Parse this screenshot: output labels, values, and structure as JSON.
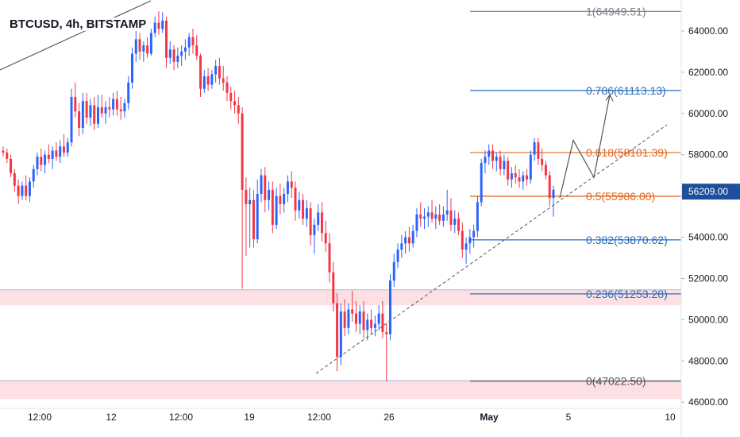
{
  "chart_data": {
    "type": "candlestick",
    "title": "BTCUSD, 4h, BITSTAMP",
    "ylim": [
      45700,
      65500
    ],
    "y_ticks": [
      {
        "value": 46000,
        "label": "46000.00"
      },
      {
        "value": 48000,
        "label": "48000.00"
      },
      {
        "value": 50000,
        "label": "50000.00"
      },
      {
        "value": 52000,
        "label": "52000.00"
      },
      {
        "value": 54000,
        "label": "54000.00"
      },
      {
        "value": 56000,
        "label": "56000.00"
      },
      {
        "value": 58000,
        "label": "58000.00"
      },
      {
        "value": 60000,
        "label": "60000.00"
      },
      {
        "value": 62000,
        "label": "62000.00"
      },
      {
        "value": 64000,
        "label": "64000.00"
      }
    ],
    "x_ticks": [
      "12:00",
      "12",
      "12:00",
      "19",
      "12:00",
      "26",
      "May",
      "5",
      "10"
    ],
    "current_price": {
      "value": 56209,
      "label": "56209.00",
      "color": "#1f4e9c"
    },
    "colors": {
      "up": "#2962ff",
      "down": "#f23645",
      "fib_blue": "#2a6fba",
      "fib_orange": "#e0651b",
      "fib_gray": "#787b86",
      "zone": "#fde0e3"
    },
    "fib_levels": [
      {
        "ratio": "1",
        "value": 64949.51,
        "label": "1(64949.51)",
        "color": "#787b86"
      },
      {
        "ratio": "0.786",
        "value": 61113.13,
        "label": "0.786(61113.13)",
        "color": "#2a6fba"
      },
      {
        "ratio": "0.618",
        "value": 58101.39,
        "label": "0.618(58101.39)",
        "color": "#e0651b"
      },
      {
        "ratio": "0.5",
        "value": 55986.0,
        "label": "0.5(55986.00)",
        "color": "#e0651b"
      },
      {
        "ratio": "0.382",
        "value": 53870.62,
        "label": "0.382(53870.62)",
        "color": "#2a6fba"
      },
      {
        "ratio": "0.236",
        "value": 51253.28,
        "label": "0.236(51253.28)",
        "color": "#2a6fba"
      },
      {
        "ratio": "0",
        "value": 47022.5,
        "label": "0(47022.50)",
        "color": "#555555"
      }
    ],
    "zones": [
      {
        "from": 50700,
        "to": 51450
      },
      {
        "from": 46150,
        "to": 47050
      }
    ],
    "candles": [
      {
        "o": 58200,
        "h": 58400,
        "l": 57900,
        "c": 58100
      },
      {
        "o": 58100,
        "h": 58300,
        "l": 57600,
        "c": 57800
      },
      {
        "o": 57800,
        "h": 58000,
        "l": 56900,
        "c": 57100
      },
      {
        "o": 57100,
        "h": 57300,
        "l": 56200,
        "c": 56500
      },
      {
        "o": 56500,
        "h": 56800,
        "l": 55600,
        "c": 56000
      },
      {
        "o": 56000,
        "h": 56700,
        "l": 55800,
        "c": 56500
      },
      {
        "o": 56500,
        "h": 57000,
        "l": 55800,
        "c": 56000
      },
      {
        "o": 56000,
        "h": 56900,
        "l": 55700,
        "c": 56700
      },
      {
        "o": 56700,
        "h": 57500,
        "l": 56400,
        "c": 57300
      },
      {
        "o": 57300,
        "h": 58100,
        "l": 57000,
        "c": 57900
      },
      {
        "o": 57900,
        "h": 58300,
        "l": 57200,
        "c": 57500
      },
      {
        "o": 57500,
        "h": 58200,
        "l": 57100,
        "c": 58000
      },
      {
        "o": 58000,
        "h": 58500,
        "l": 57600,
        "c": 57800
      },
      {
        "o": 57800,
        "h": 58400,
        "l": 57300,
        "c": 58200
      },
      {
        "o": 58200,
        "h": 58600,
        "l": 57700,
        "c": 57900
      },
      {
        "o": 57900,
        "h": 58700,
        "l": 57600,
        "c": 58400
      },
      {
        "o": 58400,
        "h": 59000,
        "l": 57900,
        "c": 58100
      },
      {
        "o": 58100,
        "h": 58800,
        "l": 57900,
        "c": 58600
      },
      {
        "o": 58600,
        "h": 61200,
        "l": 58400,
        "c": 60800
      },
      {
        "o": 60800,
        "h": 61500,
        "l": 59800,
        "c": 60100
      },
      {
        "o": 60100,
        "h": 60500,
        "l": 58900,
        "c": 59300
      },
      {
        "o": 59300,
        "h": 61000,
        "l": 59000,
        "c": 60600
      },
      {
        "o": 60600,
        "h": 61000,
        "l": 59500,
        "c": 59800
      },
      {
        "o": 59800,
        "h": 60700,
        "l": 59400,
        "c": 60400
      },
      {
        "o": 60400,
        "h": 60800,
        "l": 59200,
        "c": 59500
      },
      {
        "o": 59500,
        "h": 60900,
        "l": 59300,
        "c": 60300
      },
      {
        "o": 60300,
        "h": 60900,
        "l": 59800,
        "c": 60000
      },
      {
        "o": 60000,
        "h": 60600,
        "l": 59500,
        "c": 60300
      },
      {
        "o": 60300,
        "h": 60800,
        "l": 59800,
        "c": 60200
      },
      {
        "o": 60200,
        "h": 61000,
        "l": 59900,
        "c": 60700
      },
      {
        "o": 60700,
        "h": 61100,
        "l": 59900,
        "c": 60200
      },
      {
        "o": 60200,
        "h": 60800,
        "l": 59700,
        "c": 60100
      },
      {
        "o": 60100,
        "h": 60700,
        "l": 59800,
        "c": 60500
      },
      {
        "o": 60500,
        "h": 61800,
        "l": 60200,
        "c": 61500
      },
      {
        "o": 61500,
        "h": 63200,
        "l": 61200,
        "c": 62900
      },
      {
        "o": 62900,
        "h": 64000,
        "l": 62500,
        "c": 63600
      },
      {
        "o": 63600,
        "h": 63900,
        "l": 62600,
        "c": 63000
      },
      {
        "o": 63000,
        "h": 63500,
        "l": 62500,
        "c": 63300
      },
      {
        "o": 63300,
        "h": 63700,
        "l": 62700,
        "c": 62900
      },
      {
        "o": 62900,
        "h": 64100,
        "l": 62800,
        "c": 63900
      },
      {
        "o": 63900,
        "h": 64700,
        "l": 63700,
        "c": 64400
      },
      {
        "o": 64400,
        "h": 64950,
        "l": 63800,
        "c": 64100
      },
      {
        "o": 64100,
        "h": 64900,
        "l": 63900,
        "c": 64500
      },
      {
        "o": 64500,
        "h": 64700,
        "l": 62200,
        "c": 62700
      },
      {
        "o": 62700,
        "h": 63500,
        "l": 62400,
        "c": 63100
      },
      {
        "o": 63100,
        "h": 63300,
        "l": 62100,
        "c": 62500
      },
      {
        "o": 62500,
        "h": 63200,
        "l": 62200,
        "c": 62800
      },
      {
        "o": 62800,
        "h": 63300,
        "l": 62300,
        "c": 63000
      },
      {
        "o": 63000,
        "h": 63600,
        "l": 62600,
        "c": 63200
      },
      {
        "o": 63200,
        "h": 63900,
        "l": 62800,
        "c": 63700
      },
      {
        "o": 63700,
        "h": 64100,
        "l": 62900,
        "c": 63300
      },
      {
        "o": 63300,
        "h": 63800,
        "l": 62600,
        "c": 62800
      },
      {
        "o": 62800,
        "h": 62900,
        "l": 60800,
        "c": 61200
      },
      {
        "o": 61200,
        "h": 62100,
        "l": 61000,
        "c": 61800
      },
      {
        "o": 61800,
        "h": 62200,
        "l": 61100,
        "c": 61400
      },
      {
        "o": 61400,
        "h": 62100,
        "l": 61200,
        "c": 61900
      },
      {
        "o": 61900,
        "h": 62600,
        "l": 61500,
        "c": 62300
      },
      {
        "o": 62300,
        "h": 62700,
        "l": 61400,
        "c": 61700
      },
      {
        "o": 61700,
        "h": 62300,
        "l": 61100,
        "c": 61500
      },
      {
        "o": 61500,
        "h": 61800,
        "l": 60600,
        "c": 61000
      },
      {
        "o": 61000,
        "h": 61300,
        "l": 60200,
        "c": 60600
      },
      {
        "o": 60600,
        "h": 61100,
        "l": 60000,
        "c": 60400
      },
      {
        "o": 60400,
        "h": 60800,
        "l": 59500,
        "c": 60000
      },
      {
        "o": 60000,
        "h": 60300,
        "l": 51500,
        "c": 56300
      },
      {
        "o": 56300,
        "h": 56900,
        "l": 53100,
        "c": 55600
      },
      {
        "o": 55600,
        "h": 56400,
        "l": 53500,
        "c": 55800
      },
      {
        "o": 55800,
        "h": 56300,
        "l": 53500,
        "c": 53900
      },
      {
        "o": 53900,
        "h": 56800,
        "l": 53700,
        "c": 56100
      },
      {
        "o": 56100,
        "h": 57300,
        "l": 55700,
        "c": 57000
      },
      {
        "o": 57000,
        "h": 57400,
        "l": 55200,
        "c": 55800
      },
      {
        "o": 55800,
        "h": 56700,
        "l": 55300,
        "c": 56300
      },
      {
        "o": 56300,
        "h": 56700,
        "l": 54200,
        "c": 54600
      },
      {
        "o": 54600,
        "h": 56400,
        "l": 54400,
        "c": 56000
      },
      {
        "o": 56000,
        "h": 56600,
        "l": 55100,
        "c": 55600
      },
      {
        "o": 55600,
        "h": 56400,
        "l": 55200,
        "c": 56100
      },
      {
        "o": 56100,
        "h": 57000,
        "l": 55700,
        "c": 56700
      },
      {
        "o": 56700,
        "h": 57200,
        "l": 55900,
        "c": 56400
      },
      {
        "o": 56400,
        "h": 56700,
        "l": 54800,
        "c": 55300
      },
      {
        "o": 55300,
        "h": 56200,
        "l": 54900,
        "c": 55800
      },
      {
        "o": 55800,
        "h": 56100,
        "l": 54600,
        "c": 54900
      },
      {
        "o": 54900,
        "h": 55800,
        "l": 54500,
        "c": 55400
      },
      {
        "o": 55400,
        "h": 55700,
        "l": 53600,
        "c": 54100
      },
      {
        "o": 54100,
        "h": 54900,
        "l": 53200,
        "c": 54600
      },
      {
        "o": 54600,
        "h": 55600,
        "l": 54300,
        "c": 55200
      },
      {
        "o": 55200,
        "h": 55700,
        "l": 53800,
        "c": 54200
      },
      {
        "o": 54200,
        "h": 54800,
        "l": 53300,
        "c": 53700
      },
      {
        "o": 53700,
        "h": 54200,
        "l": 51800,
        "c": 52300
      },
      {
        "o": 52300,
        "h": 52800,
        "l": 50400,
        "c": 50800
      },
      {
        "o": 50800,
        "h": 51300,
        "l": 47500,
        "c": 48200
      },
      {
        "o": 48200,
        "h": 50800,
        "l": 47800,
        "c": 50400
      },
      {
        "o": 50400,
        "h": 51000,
        "l": 49200,
        "c": 49600
      },
      {
        "o": 49600,
        "h": 50800,
        "l": 49300,
        "c": 50500
      },
      {
        "o": 50500,
        "h": 51400,
        "l": 49900,
        "c": 50300
      },
      {
        "o": 50300,
        "h": 50900,
        "l": 49400,
        "c": 49800
      },
      {
        "o": 49800,
        "h": 50700,
        "l": 49300,
        "c": 50400
      },
      {
        "o": 50400,
        "h": 50900,
        "l": 49100,
        "c": 49500
      },
      {
        "o": 49500,
        "h": 50300,
        "l": 49000,
        "c": 50000
      },
      {
        "o": 50000,
        "h": 50500,
        "l": 49300,
        "c": 49600
      },
      {
        "o": 49600,
        "h": 50200,
        "l": 49200,
        "c": 49800
      },
      {
        "o": 49800,
        "h": 50700,
        "l": 49500,
        "c": 50300
      },
      {
        "o": 50300,
        "h": 50900,
        "l": 49100,
        "c": 49400
      },
      {
        "o": 49400,
        "h": 49800,
        "l": 47000,
        "c": 49300
      },
      {
        "o": 49300,
        "h": 52200,
        "l": 49000,
        "c": 51900
      },
      {
        "o": 51900,
        "h": 53200,
        "l": 51600,
        "c": 52800
      },
      {
        "o": 52800,
        "h": 53700,
        "l": 52500,
        "c": 53400
      },
      {
        "o": 53400,
        "h": 54100,
        "l": 53000,
        "c": 53700
      },
      {
        "o": 53700,
        "h": 54300,
        "l": 53200,
        "c": 54000
      },
      {
        "o": 54000,
        "h": 54500,
        "l": 53300,
        "c": 53700
      },
      {
        "o": 53700,
        "h": 54600,
        "l": 53500,
        "c": 54300
      },
      {
        "o": 54300,
        "h": 55400,
        "l": 54000,
        "c": 55100
      },
      {
        "o": 55100,
        "h": 55700,
        "l": 54500,
        "c": 54900
      },
      {
        "o": 54900,
        "h": 55400,
        "l": 54400,
        "c": 55000
      },
      {
        "o": 55000,
        "h": 55500,
        "l": 54500,
        "c": 55200
      },
      {
        "o": 55200,
        "h": 55800,
        "l": 54700,
        "c": 54900
      },
      {
        "o": 54900,
        "h": 55500,
        "l": 54400,
        "c": 55100
      },
      {
        "o": 55100,
        "h": 55600,
        "l": 54600,
        "c": 54800
      },
      {
        "o": 54800,
        "h": 55500,
        "l": 54500,
        "c": 55100
      },
      {
        "o": 55100,
        "h": 56300,
        "l": 54800,
        "c": 55300
      },
      {
        "o": 55300,
        "h": 55900,
        "l": 54300,
        "c": 54600
      },
      {
        "o": 54600,
        "h": 55300,
        "l": 54200,
        "c": 54900
      },
      {
        "o": 54900,
        "h": 55200,
        "l": 54100,
        "c": 54300
      },
      {
        "o": 54300,
        "h": 54700,
        "l": 53000,
        "c": 53400
      },
      {
        "o": 53400,
        "h": 54000,
        "l": 52700,
        "c": 53700
      },
      {
        "o": 53700,
        "h": 54400,
        "l": 53200,
        "c": 54000
      },
      {
        "o": 54000,
        "h": 54600,
        "l": 53500,
        "c": 54300
      },
      {
        "o": 54300,
        "h": 56000,
        "l": 54000,
        "c": 55700
      },
      {
        "o": 55700,
        "h": 57800,
        "l": 55500,
        "c": 57600
      },
      {
        "o": 57600,
        "h": 58200,
        "l": 57100,
        "c": 57900
      },
      {
        "o": 57900,
        "h": 58500,
        "l": 57500,
        "c": 58200
      },
      {
        "o": 58200,
        "h": 58500,
        "l": 57300,
        "c": 57700
      },
      {
        "o": 57700,
        "h": 58100,
        "l": 57200,
        "c": 57900
      },
      {
        "o": 57900,
        "h": 58200,
        "l": 57000,
        "c": 57300
      },
      {
        "o": 57300,
        "h": 58000,
        "l": 57000,
        "c": 57700
      },
      {
        "o": 57700,
        "h": 57900,
        "l": 56500,
        "c": 56800
      },
      {
        "o": 56800,
        "h": 57400,
        "l": 56400,
        "c": 57100
      },
      {
        "o": 57100,
        "h": 57500,
        "l": 56600,
        "c": 56900
      },
      {
        "o": 56900,
        "h": 57300,
        "l": 56400,
        "c": 56700
      },
      {
        "o": 56700,
        "h": 57200,
        "l": 56300,
        "c": 57000
      },
      {
        "o": 57000,
        "h": 57300,
        "l": 56500,
        "c": 56800
      },
      {
        "o": 56800,
        "h": 58200,
        "l": 56600,
        "c": 58000
      },
      {
        "o": 58000,
        "h": 58800,
        "l": 57700,
        "c": 58600
      },
      {
        "o": 58600,
        "h": 58800,
        "l": 57500,
        "c": 57800
      },
      {
        "o": 57800,
        "h": 58300,
        "l": 57200,
        "c": 57500
      },
      {
        "o": 57500,
        "h": 57700,
        "l": 56800,
        "c": 57000
      },
      {
        "o": 57000,
        "h": 57200,
        "l": 55500,
        "c": 55900
      },
      {
        "o": 55900,
        "h": 56500,
        "l": 55000,
        "c": 56300
      }
    ]
  }
}
